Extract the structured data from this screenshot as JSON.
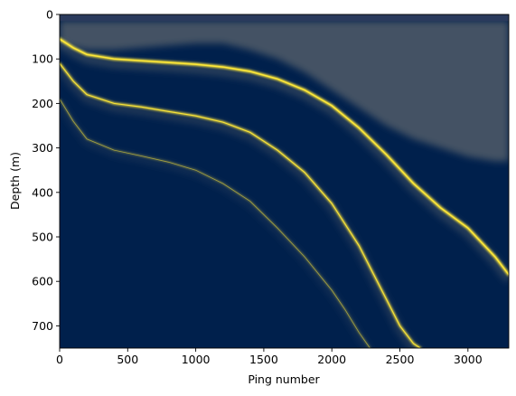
{
  "chart_data": {
    "type": "heatmap",
    "title": "",
    "xlabel": "Ping number",
    "ylabel": "Depth (m)",
    "xlim": [
      0,
      3300
    ],
    "ylim": [
      750,
      0
    ],
    "y_inverted": true,
    "colormap": "cividis",
    "colors": {
      "low": "#00204c",
      "mid": "#7c7b78",
      "high": "#fee838"
    },
    "x_ticks": [
      0,
      500,
      1000,
      1500,
      2000,
      2500,
      3000
    ],
    "y_ticks": [
      0,
      100,
      200,
      300,
      400,
      500,
      600,
      700
    ],
    "grid": false,
    "series": [
      {
        "x": [
          0,
          100,
          200,
          400,
          600,
          800,
          1000,
          1200,
          1400,
          1600,
          1800,
          2000,
          2200,
          2400,
          2600,
          2800,
          3000,
          3200,
          3300
        ],
        "y": [
          55,
          75,
          90,
          100,
          104,
          108,
          112,
          118,
          128,
          145,
          170,
          205,
          255,
          315,
          380,
          435,
          480,
          545,
          585
        ]
      },
      {
        "x": [
          0,
          100,
          200,
          400,
          600,
          800,
          1000,
          1200,
          1400,
          1600,
          1800,
          2000,
          2200,
          2300,
          2400,
          2500,
          2600,
          2650
        ],
        "y": [
          110,
          150,
          180,
          200,
          208,
          218,
          228,
          242,
          265,
          305,
          355,
          425,
          520,
          580,
          640,
          700,
          740,
          750
        ]
      },
      {
        "x": [
          0,
          100,
          200,
          400,
          600,
          800,
          1000,
          1200,
          1400,
          1600,
          1800,
          2000,
          2100,
          2200,
          2280
        ],
        "y": [
          190,
          240,
          280,
          305,
          318,
          332,
          350,
          380,
          420,
          480,
          545,
          620,
          665,
          715,
          750
        ]
      }
    ],
    "surface_band": {
      "x": [
        0,
        200,
        400,
        600,
        800,
        1000,
        1200,
        1400,
        1600,
        1800,
        2000,
        2200,
        2400,
        2600,
        2800,
        3000,
        3200,
        3300
      ],
      "y_top": [
        15,
        15,
        15,
        15,
        15,
        15,
        15,
        15,
        15,
        15,
        15,
        15,
        15,
        15,
        15,
        15,
        15,
        15
      ],
      "y_bottom": [
        65,
        80,
        80,
        75,
        70,
        65,
        65,
        80,
        100,
        130,
        170,
        210,
        250,
        280,
        300,
        320,
        330,
        330
      ]
    }
  }
}
